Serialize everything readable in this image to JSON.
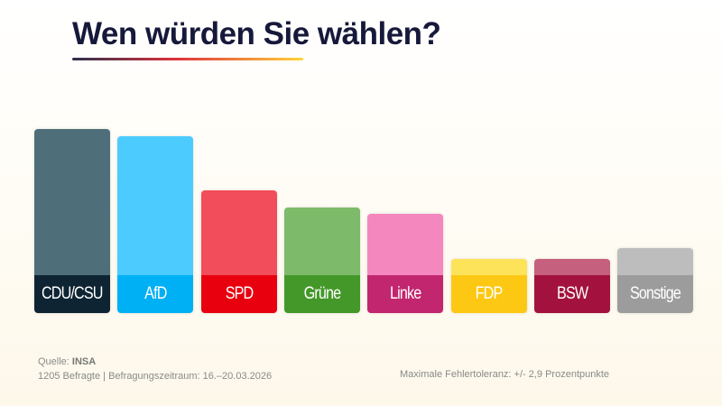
{
  "chart_data": {
    "type": "bar",
    "title": "Wen würden Sie wählen?",
    "categories": [
      "CDU/CSU",
      "AfD",
      "SPD",
      "Grüne",
      "Linke",
      "FDP",
      "BSW",
      "Sonstige"
    ],
    "values": [
      27,
      26,
      18,
      15.5,
      14.5,
      8,
      8,
      9.5
    ],
    "colors_bar": [
      "#4e6f7a",
      "#4ccbff",
      "#f24d5a",
      "#7dba6a",
      "#f587bf",
      "#fde35a",
      "#c5607e",
      "#bdbdbd"
    ],
    "colors_label": [
      "#0f2433",
      "#00b0f5",
      "#e8000f",
      "#44982a",
      "#c2266f",
      "#fcc814",
      "#a3123f",
      "#9c9c9c"
    ],
    "xlabel": "",
    "ylabel": "",
    "grid": false,
    "legend": "none"
  },
  "footer": {
    "source_label": "Quelle:",
    "source": "INSA",
    "details": "1205 Befragte | Befragungszeitraum: 16.–20.03.2026",
    "tolerance": "Maximale Fehlertoleranz: +/- 2,9 Prozentpunkte"
  }
}
